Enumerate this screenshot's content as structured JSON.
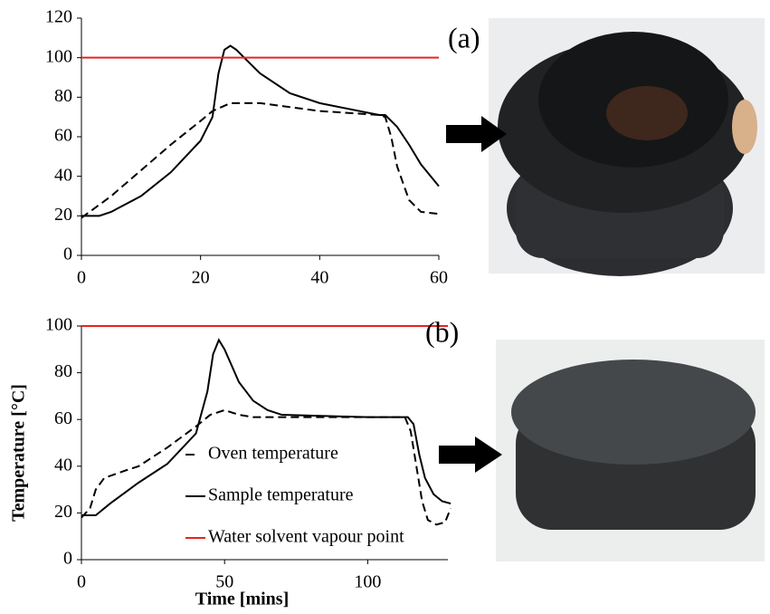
{
  "chart_data": [
    {
      "type": "line",
      "annotation": "(a)",
      "xlim": [
        0,
        60
      ],
      "xticks": [
        0,
        20,
        40,
        60
      ],
      "ylim": [
        0,
        120
      ],
      "yticks": [
        0,
        20,
        40,
        60,
        80,
        100,
        120
      ],
      "series": [
        {
          "color": "#000000",
          "dash": true,
          "x": [
            0,
            5,
            10,
            15,
            20,
            22,
            25,
            30,
            40,
            50,
            51,
            52,
            53,
            55,
            57,
            60
          ],
          "values": [
            19,
            30,
            43,
            56,
            68,
            73,
            77,
            77,
            73,
            71,
            70,
            60,
            45,
            28,
            22,
            21
          ]
        },
        {
          "color": "#000000",
          "dash": false,
          "x": [
            0,
            3,
            5,
            10,
            15,
            20,
            22,
            23,
            24,
            25,
            26,
            28,
            30,
            35,
            40,
            45,
            50,
            51,
            53,
            55,
            57,
            60
          ],
          "values": [
            20,
            20,
            22,
            30,
            42,
            58,
            70,
            92,
            104,
            106,
            104,
            98,
            92,
            82,
            77,
            74,
            71,
            71,
            65,
            56,
            46,
            35
          ]
        },
        {
          "color": "#e8231f",
          "dash": false,
          "x": [
            0,
            60
          ],
          "values": [
            100,
            100
          ]
        }
      ]
    },
    {
      "type": "line",
      "annotation": "(b)",
      "x_label": "Time [mins]",
      "y_label": "Temperature [°C]",
      "legend": true,
      "xlim": [
        0,
        128
      ],
      "xticks": [
        0,
        50,
        100
      ],
      "ylim": [
        0,
        100
      ],
      "yticks": [
        0,
        20,
        40,
        60,
        80,
        100
      ],
      "series": [
        {
          "name": "Oven temperature",
          "color": "#000000",
          "dash": true,
          "x": [
            0,
            3,
            5,
            8,
            15,
            20,
            30,
            40,
            45,
            50,
            55,
            60,
            70,
            100,
            113,
            115,
            117,
            119,
            121,
            124,
            127,
            129
          ],
          "values": [
            18,
            22,
            30,
            35,
            38,
            40,
            48,
            57,
            62,
            64,
            62,
            61,
            61,
            61,
            61,
            55,
            40,
            25,
            17,
            15,
            16,
            22
          ]
        },
        {
          "name": "Sample temperature",
          "color": "#000000",
          "dash": false,
          "x": [
            0,
            5,
            10,
            20,
            30,
            40,
            44,
            46,
            48,
            50,
            55,
            60,
            65,
            70,
            100,
            114,
            116,
            118,
            120,
            123,
            126,
            129
          ],
          "values": [
            19,
            19,
            24,
            33,
            41,
            54,
            72,
            88,
            94,
            90,
            76,
            68,
            64,
            62,
            61,
            61,
            58,
            45,
            35,
            28,
            25,
            24
          ]
        },
        {
          "name": "Water solvent vapour point",
          "color": "#e8231f",
          "dash": false,
          "x": [
            0,
            128
          ],
          "values": [
            100,
            100
          ]
        }
      ]
    }
  ]
}
